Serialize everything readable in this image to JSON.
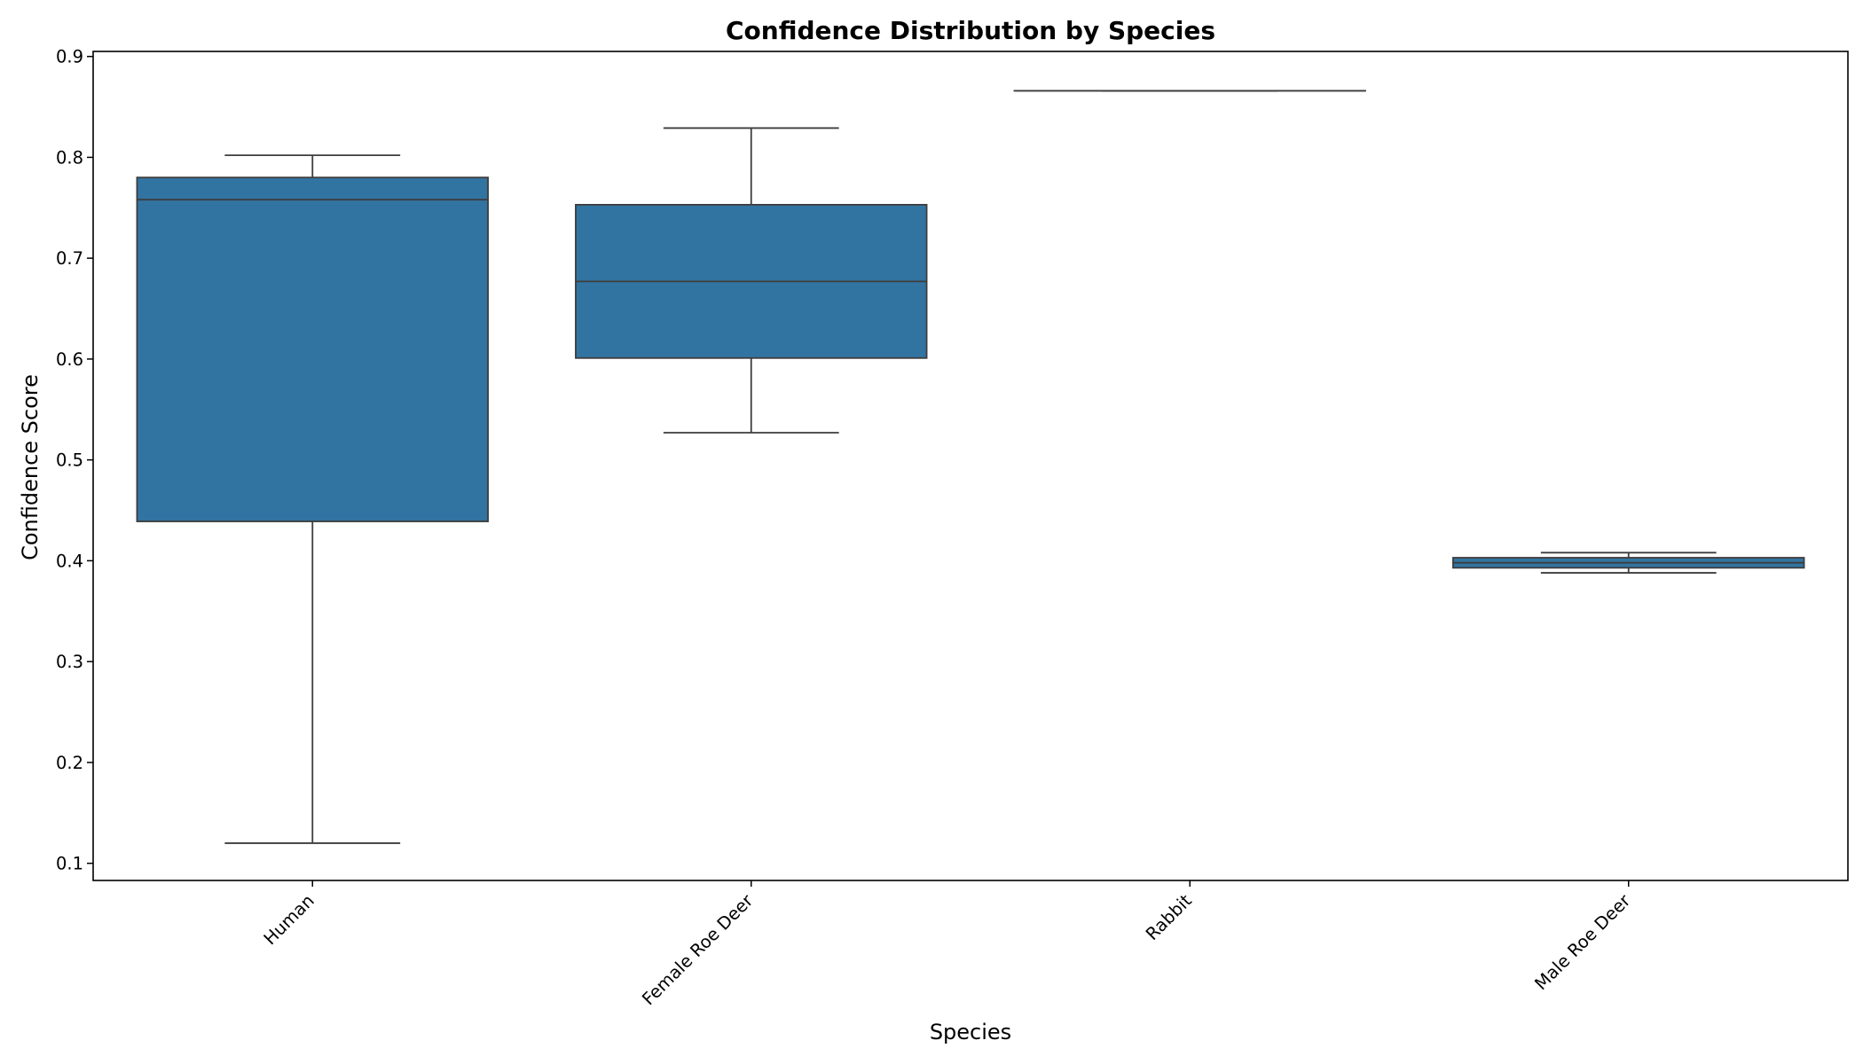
{
  "chart_data": {
    "type": "box",
    "title": "Confidence Distribution by Species",
    "xlabel": "Species",
    "ylabel": "Confidence Score",
    "ylim": [
      0.083,
      0.905
    ],
    "yticks": [
      "0.1",
      "0.2",
      "0.3",
      "0.4",
      "0.5",
      "0.6",
      "0.7",
      "0.8",
      "0.9"
    ],
    "grid": false,
    "box_color": "#3274a1",
    "categories": [
      "Human",
      "Female Roe Deer",
      "Rabbit",
      "Male Roe Deer"
    ],
    "boxes": [
      {
        "category": "Human",
        "whisker_low": 0.12,
        "q1": 0.439,
        "median": 0.758,
        "q3": 0.78,
        "whisker_high": 0.802
      },
      {
        "category": "Female Roe Deer",
        "whisker_low": 0.527,
        "q1": 0.601,
        "median": 0.677,
        "q3": 0.753,
        "whisker_high": 0.829
      },
      {
        "category": "Rabbit",
        "whisker_low": 0.866,
        "q1": 0.866,
        "median": 0.866,
        "q3": 0.866,
        "whisker_high": 0.866
      },
      {
        "category": "Male Roe Deer",
        "whisker_low": 0.388,
        "q1": 0.393,
        "median": 0.398,
        "q3": 0.403,
        "whisker_high": 0.408
      }
    ]
  }
}
